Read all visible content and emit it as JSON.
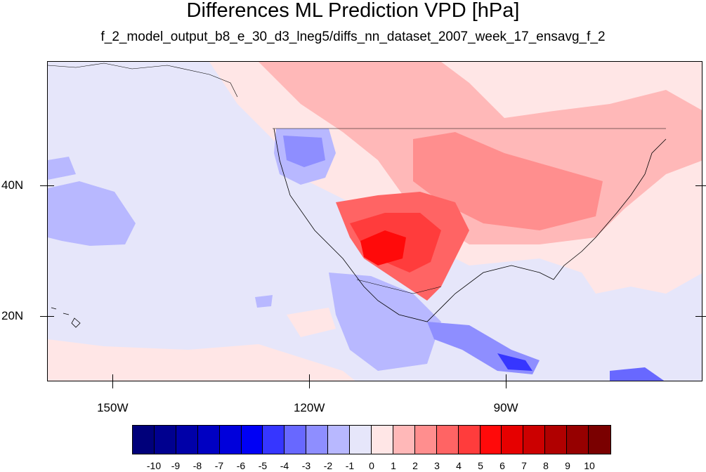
{
  "title": "Differences ML Prediction VPD [hPa]",
  "subtitle": "f_2_model_output_b8_e_30_d3_lneg5/diffs_nn_dataset_2007_week_17_ensavg_f_2",
  "map": {
    "lon_range": [
      -160,
      -60
    ],
    "lat_range": [
      10,
      59
    ],
    "x_ticks": [
      {
        "lon": -150,
        "label": "150W"
      },
      {
        "lon": -120,
        "label": "120W"
      },
      {
        "lon": -90,
        "label": "90W"
      }
    ],
    "y_ticks": [
      {
        "lat": 40,
        "label": "40N"
      },
      {
        "lat": 20,
        "label": "20N"
      }
    ]
  },
  "colorbar": {
    "colors": [
      "#00007a",
      "#00008f",
      "#0000a8",
      "#0000c2",
      "#0000db",
      "#0000f5",
      "#3636ff",
      "#6868ff",
      "#8e8eff",
      "#b8b8ff",
      "#e6e6fa",
      "#ffe6e6",
      "#ffb8b8",
      "#ff8e8e",
      "#ff6464",
      "#ff3c3c",
      "#ff0a0a",
      "#e60000",
      "#cc0000",
      "#b00000",
      "#960000",
      "#7a0000"
    ],
    "labels": [
      "-10",
      "-9",
      "-8",
      "-7",
      "-6",
      "-5",
      "-4",
      "-3",
      "-2",
      "-1",
      "0",
      "1",
      "2",
      "3",
      "4",
      "5",
      "6",
      "7",
      "8",
      "9",
      "10"
    ]
  }
}
